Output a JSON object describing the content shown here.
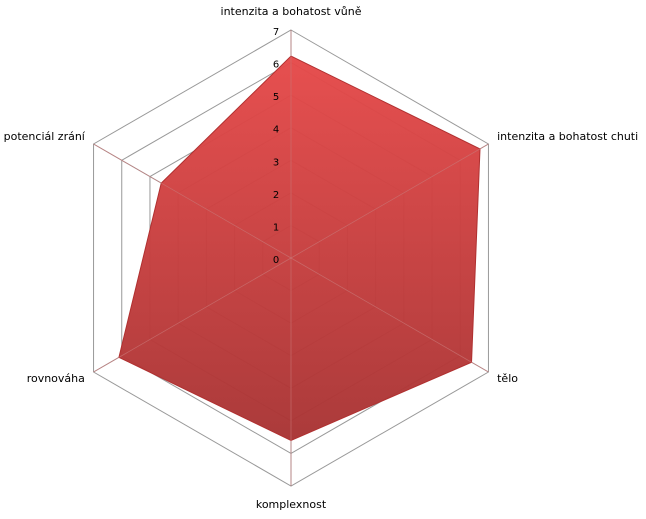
{
  "chart_data": {
    "type": "radar",
    "categories": [
      "intenzita a bohatost  vůně",
      "intenzita a bohatost  chuti",
      "tělo",
      "komplexnost",
      "rovnováha",
      "potenciál zrání"
    ],
    "series": [
      {
        "color": "#d94040",
        "values": [
          6.2,
          6.7,
          6.4,
          5.6,
          6.1,
          4.6
        ]
      }
    ],
    "rlim": [
      0,
      7
    ],
    "rticks": [
      0,
      1,
      2,
      3,
      4,
      5,
      6,
      7
    ],
    "grid": true
  }
}
